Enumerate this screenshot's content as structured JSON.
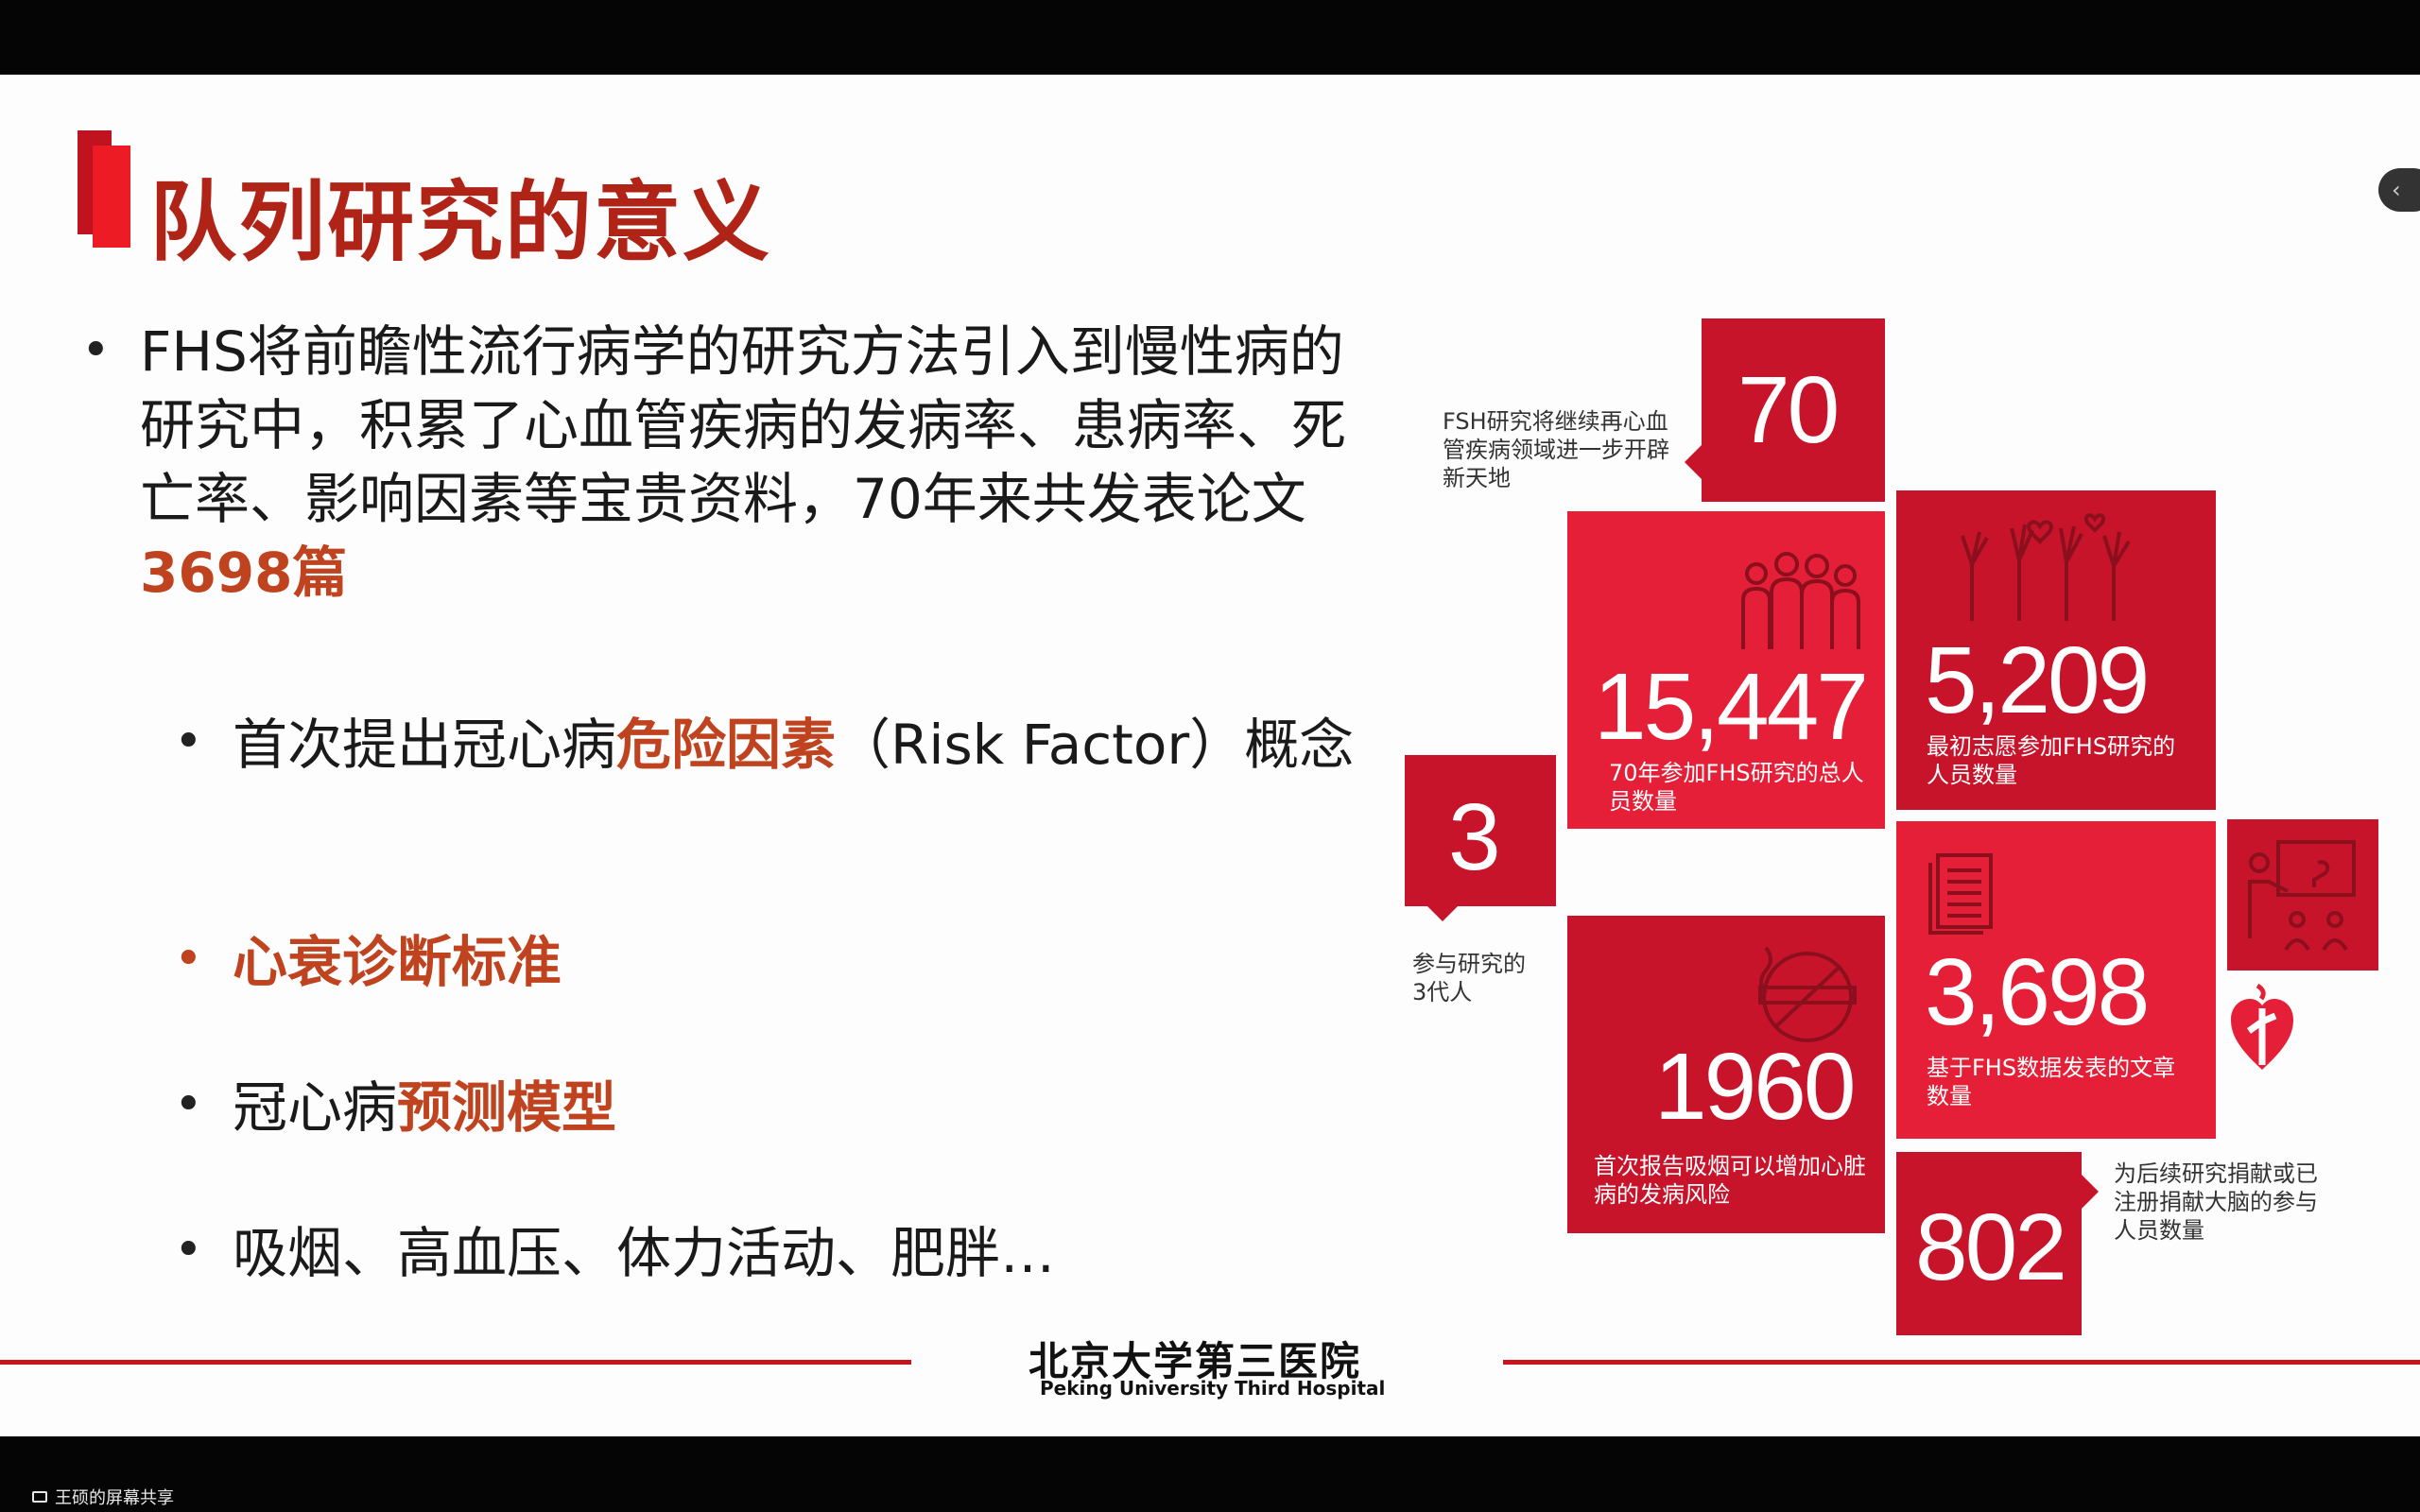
{
  "slide": {
    "title": "队列研究的意义",
    "main_bullet": {
      "text": "FHS将前瞻性流行病学的研究方法引入到慢性病的研究中，积累了心血管疾病的发病率、患病率、死亡率、影响因素等宝贵资料，70年来共发表论文",
      "highlight": "3698篇"
    },
    "sub_bullets": [
      {
        "prefix": "首次提出冠心病",
        "highlight": "危险因素",
        "suffix": "（Risk Factor）概念"
      },
      {
        "prefix": "",
        "highlight": "心衰诊断标准",
        "suffix": ""
      },
      {
        "prefix": "冠心病",
        "highlight": "预测模型",
        "suffix": ""
      },
      {
        "prefix": "吸烟、高血压、体力活动、肥胖…",
        "highlight": "",
        "suffix": ""
      }
    ],
    "infographic": {
      "tiles": [
        {
          "number": "70",
          "caption": "FSH研究将继续再心血管疾病领域进一步开辟新天地"
        },
        {
          "number": "15,447",
          "caption": "70年参加FHS研究的总人员数量"
        },
        {
          "number": "5,209",
          "caption": "最初志愿参加FHS研究的人员数量"
        },
        {
          "number": "3",
          "caption": "参与研究的3代人"
        },
        {
          "number": "3,698",
          "caption": "基于FHS数据发表的文章数量"
        },
        {
          "number": "1960",
          "caption": "首次报告吸烟可以增加心脏病的发病风险"
        },
        {
          "number": "802",
          "caption": "为后续研究捐献或已注册捐献大脑的参与人员数量"
        }
      ],
      "icons": [
        "people-group-icon",
        "raised-hands-icon",
        "document-icon",
        "no-smoking-icon",
        "presentation-icon",
        "heart-logo-icon"
      ]
    },
    "footer": {
      "hospital_cn": "北京大学第三医院",
      "hospital_en": "Peking University Third Hospital"
    },
    "colors": {
      "title": "#b02418",
      "highlight": "#c0431f",
      "tile_dark": "#c8142b",
      "tile_light": "#e51f37",
      "footer_line": "#c8141d"
    }
  },
  "share_bar": {
    "label": "王硕的屏幕共享"
  },
  "side_tab": {
    "glyph": "‹"
  }
}
